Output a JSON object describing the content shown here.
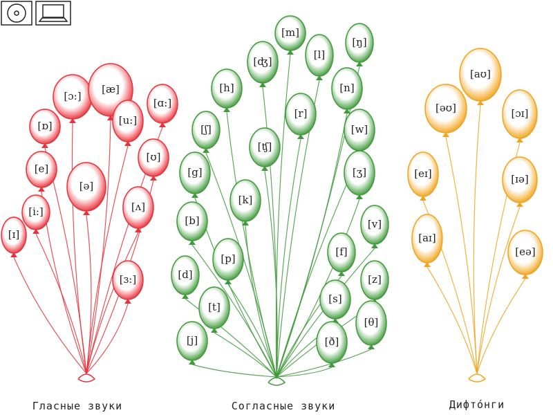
{
  "groups": [
    {
      "caption": "Гласные звуки",
      "color": "#e8313a",
      "balloons": [
        "[ɔ:]",
        "[æ]",
        "[ɑ:]",
        "[ɒ]",
        "[u:]",
        "[ʊ]",
        "[e]",
        "[ə]",
        "[ʌ]",
        "[i:]",
        "[ɪ]",
        "[ɜ:]"
      ]
    },
    {
      "caption": "Согласные звуки",
      "color": "#3f9a3a",
      "balloons": [
        "[m]",
        "[ʤ]",
        "[l]",
        "[ŋ]",
        "[h]",
        "[n]",
        "[r]",
        "[ʃ]",
        "[w]",
        "[ʧ]",
        "[g]",
        "[ʒ]",
        "[k]",
        "[b]",
        "[v]",
        "[p]",
        "[f]",
        "[d]",
        "[z]",
        "[t]",
        "[s]",
        "[θ]",
        "[j]",
        "[ð]"
      ]
    },
    {
      "caption": "Дифто́нги",
      "color": "#f0a41c",
      "balloons": [
        "[aʊ]",
        "[əʊ]",
        "[ɔɪ]",
        "[eɪ]",
        "[ɪə]",
        "[aɪ]",
        "[eə]"
      ]
    }
  ]
}
